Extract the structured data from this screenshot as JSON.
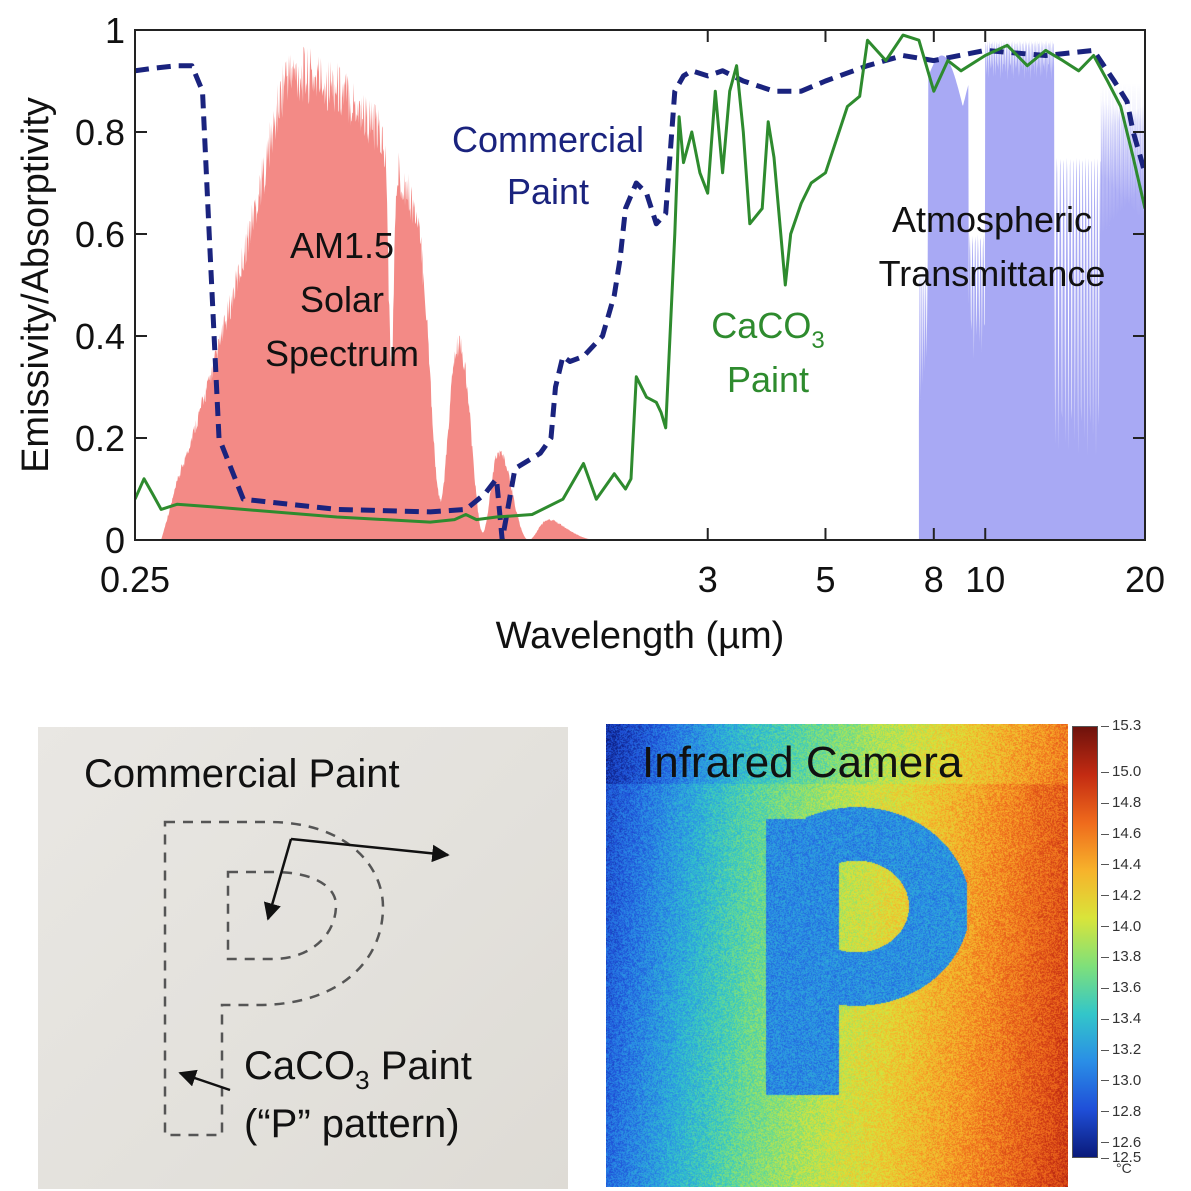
{
  "chart_data": {
    "type": "line",
    "xlabel": "Wavelength (µm)",
    "ylabel": "Emissivity/Absorptivity",
    "x_scale": "log",
    "xlim": [
      0.25,
      20
    ],
    "ylim": [
      0,
      1
    ],
    "x_ticks": [
      {
        "value": 0.25,
        "label": "0.25"
      },
      {
        "value": 3,
        "label": "3"
      },
      {
        "value": 5,
        "label": "5"
      },
      {
        "value": 8,
        "label": "8"
      },
      {
        "value": 10,
        "label": "10"
      },
      {
        "value": 20,
        "label": "20"
      }
    ],
    "y_ticks": [
      {
        "value": 0,
        "label": "0"
      },
      {
        "value": 0.2,
        "label": "0.2"
      },
      {
        "value": 0.4,
        "label": "0.4"
      },
      {
        "value": 0.6,
        "label": "0.6"
      },
      {
        "value": 0.8,
        "label": "0.8"
      },
      {
        "value": 1,
        "label": "1"
      }
    ],
    "grid": false,
    "series": [
      {
        "name": "Commercial Paint",
        "color": "#1a237e",
        "style": "dashed",
        "x": [
          0.25,
          0.27,
          0.3,
          0.32,
          0.335,
          0.345,
          0.36,
          0.4,
          0.6,
          0.9,
          1.05,
          1.14,
          1.2,
          1.23,
          1.3,
          1.45,
          1.52,
          1.55,
          1.6,
          1.65,
          1.75,
          1.9,
          2.0,
          2.05,
          2.1,
          2.2,
          2.3,
          2.4,
          2.5,
          2.6,
          2.7,
          2.8,
          3.0,
          3.2,
          3.5,
          4.0,
          4.5,
          5.0,
          6.0,
          7.0,
          8.0,
          10.0,
          13.0,
          16.0,
          17.5,
          18.5,
          19.0,
          20.0
        ],
        "y": [
          0.92,
          0.925,
          0.93,
          0.93,
          0.88,
          0.6,
          0.2,
          0.08,
          0.06,
          0.055,
          0.06,
          0.09,
          0.12,
          0.0,
          0.14,
          0.17,
          0.2,
          0.3,
          0.36,
          0.35,
          0.36,
          0.4,
          0.48,
          0.55,
          0.65,
          0.7,
          0.68,
          0.62,
          0.64,
          0.88,
          0.91,
          0.92,
          0.91,
          0.92,
          0.9,
          0.88,
          0.88,
          0.9,
          0.93,
          0.95,
          0.94,
          0.96,
          0.95,
          0.96,
          0.9,
          0.86,
          0.8,
          0.72
        ]
      },
      {
        "name": "CaCO₃ Paint",
        "color": "#2e8b2e",
        "style": "solid",
        "x": [
          0.25,
          0.26,
          0.27,
          0.28,
          0.3,
          0.35,
          0.4,
          0.6,
          0.9,
          1.0,
          1.05,
          1.1,
          1.2,
          1.4,
          1.6,
          1.75,
          1.85,
          2.0,
          2.1,
          2.15,
          2.2,
          2.3,
          2.4,
          2.45,
          2.5,
          2.6,
          2.65,
          2.7,
          2.8,
          2.9,
          3.0,
          3.1,
          3.2,
          3.3,
          3.4,
          3.5,
          3.6,
          3.8,
          3.9,
          4.0,
          4.2,
          4.3,
          4.5,
          4.7,
          5.0,
          5.5,
          5.8,
          6.0,
          6.5,
          7.0,
          7.5,
          8.0,
          8.5,
          9.0,
          10.0,
          11.0,
          12.0,
          13.0,
          14.0,
          15.0,
          16.0,
          17.0,
          18.0,
          19.0,
          20.0
        ],
        "y": [
          0.08,
          0.12,
          0.09,
          0.06,
          0.07,
          0.065,
          0.06,
          0.045,
          0.035,
          0.04,
          0.05,
          0.04,
          0.045,
          0.05,
          0.08,
          0.15,
          0.08,
          0.13,
          0.1,
          0.12,
          0.32,
          0.28,
          0.27,
          0.25,
          0.22,
          0.6,
          0.83,
          0.74,
          0.8,
          0.72,
          0.68,
          0.88,
          0.72,
          0.88,
          0.93,
          0.8,
          0.62,
          0.65,
          0.82,
          0.75,
          0.5,
          0.6,
          0.66,
          0.7,
          0.72,
          0.85,
          0.87,
          0.98,
          0.94,
          0.99,
          0.98,
          0.88,
          0.94,
          0.92,
          0.95,
          0.97,
          0.93,
          0.96,
          0.94,
          0.92,
          0.95,
          0.9,
          0.85,
          0.75,
          0.65
        ]
      }
    ],
    "filled_regions": [
      {
        "name": "AM1.5 Solar Spectrum",
        "color": "#f38a86",
        "x_range": [
          0.28,
          2.5
        ]
      },
      {
        "name": "Atmospheric Transmittance",
        "color": "#8b8cf0",
        "x_range": [
          7.5,
          20
        ]
      }
    ],
    "annotations": [
      {
        "name": "commercial-paint-label",
        "lines": [
          "Commercial",
          "Paint"
        ],
        "color": "#1a237e"
      },
      {
        "name": "caco3-paint-label",
        "lines": [
          "CaCO",
          "3",
          "Paint"
        ],
        "color": "#2e8b2e"
      },
      {
        "name": "solar-label",
        "lines": [
          "AM1.5",
          "Solar",
          "Spectrum"
        ],
        "color": "#111111"
      },
      {
        "name": "atmos-label",
        "lines": [
          "Atmospheric",
          "Transmittance"
        ],
        "color": "#111111"
      }
    ]
  },
  "photo": {
    "commercial_label": "Commercial Paint",
    "caco3_label_main": "CaCO",
    "caco3_label_sub": "3",
    "caco3_label_tail": " Paint",
    "pattern_label": "(“P” pattern)"
  },
  "ir": {
    "title": "Infrared Camera",
    "colorbar_ticks": [
      "15.3",
      "15.0",
      "14.8",
      "14.6",
      "14.4",
      "14.2",
      "14.0",
      "13.8",
      "13.6",
      "13.4",
      "13.2",
      "13.0",
      "12.8",
      "12.6",
      "12.5"
    ],
    "unit": "°C",
    "colormap": [
      "#0a1a7a",
      "#1f4fd8",
      "#2a8ee6",
      "#33c6c9",
      "#7fe07a",
      "#d9e43a",
      "#f7b22b",
      "#ef6a1c",
      "#c32b12",
      "#6e120c"
    ]
  }
}
